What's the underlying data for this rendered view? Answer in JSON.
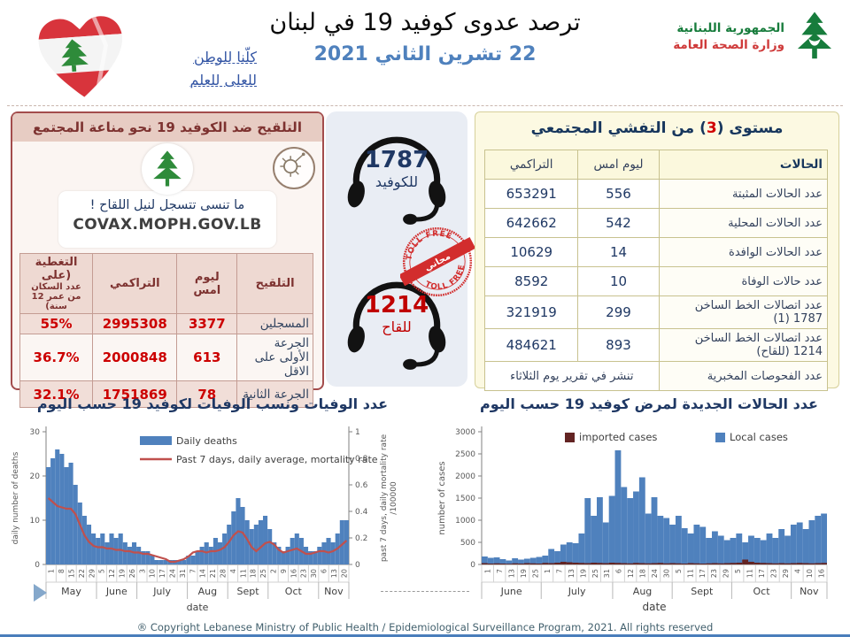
{
  "colors": {
    "bar_blue": "#4f81bd",
    "line_red": "#c0504d",
    "imported_dark_red": "#632423",
    "navy": "#1f3864",
    "value_red": "#c00000",
    "maroon": "#943634",
    "date_blue": "#4f81bd",
    "green": "#177c3c",
    "flag_red": "#d8343c",
    "panel_yellow": "#fcf9e2",
    "panel_pink": "#e7ccc3"
  },
  "icons": {
    "heart_flag": "lebanon-flag-heart-icon",
    "cedar": "cedar-tree-icon",
    "virus": "virus-icon",
    "headset": "headset-icon",
    "stamp": "toll-free-stamp-icon"
  },
  "header": {
    "slogan_line1": "كلّنا للوطن",
    "slogan_line2": "للعلى للعلم",
    "title": "ترصد عدوى كوفيد 19 في لبنان",
    "date": "22 تشرين الثاني 2021",
    "ministry_line1": "الجمهورية اللبنانية",
    "ministry_line2": "وزارة الصحة العامة"
  },
  "vaccination_panel": {
    "title": "التلقيح ضد الكوفيد 19  نحو مناعة المجتمع",
    "bubble_line1": "ما تنسى تتسجل لنيل اللقاح !",
    "bubble_line2": "COVAX.MOPH.GOV.LB",
    "table": {
      "headers": [
        "التلقيح",
        "ليوم امس",
        "التراكمي",
        "التغطية (على"
      ],
      "coverage_header_sub": "عدد السكان من عمر 12 سنة)",
      "rows": [
        {
          "label": "المسجلين",
          "yesterday": "3377",
          "cumulative": "2995308",
          "coverage": "55%"
        },
        {
          "label": "الجرعة الأولى على الاقل",
          "yesterday": "613",
          "cumulative": "2000848",
          "coverage": "36.7%"
        },
        {
          "label": "الجرعة الثانية",
          "yesterday": "78",
          "cumulative": "1751869",
          "coverage": "32.1%"
        }
      ]
    }
  },
  "hotlines": {
    "covid": {
      "number": "1787",
      "label": "للكوفيد"
    },
    "vaccine": {
      "number": "1214",
      "label": "للقاح"
    },
    "stamp": {
      "top": "TOLL FREE",
      "middle": "مجاني",
      "bottom": "TOLL FREE"
    }
  },
  "spread_panel": {
    "title_prefix": "مستوى (",
    "level": "3",
    "title_suffix": ") من التفشي المجتمعي",
    "table": {
      "headers": [
        "الحالات",
        "ليوم امس",
        "التراكمي"
      ],
      "rows": [
        {
          "label": "عدد الحالات المثبتة",
          "yesterday": "556",
          "cumulative": "653291"
        },
        {
          "label": "عدد الحالات المحلية",
          "yesterday": "542",
          "cumulative": "642662"
        },
        {
          "label": "عدد الحالات الوافدة",
          "yesterday": "14",
          "cumulative": "10629"
        },
        {
          "label": "عدد حالات الوفاة",
          "yesterday": "10",
          "cumulative": "8592"
        },
        {
          "label": "عدد اتصالات الخط الساخن 1787  (1)",
          "yesterday": "299",
          "cumulative": "321919"
        },
        {
          "label": "عدد اتصالات الخط الساخن 1214 (للقاح)",
          "yesterday": "893",
          "cumulative": "484621"
        }
      ],
      "last_row": {
        "label": "عدد الفحوصات المخبرية",
        "note": "تنشر في تقرير يوم الثلاثاء"
      }
    }
  },
  "chart_data": [
    {
      "type": "bar",
      "title": "عدد الوفيات ونسب الوفيات لكوفيد 19 حسب اليوم",
      "xlabel": "date",
      "ylabel_left": "daily number of deaths",
      "ylabel_right_line1": "past 7 days, daily mortality rate",
      "ylabel_right_line2": "/100000",
      "ylim_left": [
        0,
        30
      ],
      "yticks_left": [
        0,
        10,
        20,
        30
      ],
      "ylim_right": [
        0,
        1
      ],
      "yticks_right": [
        0,
        0.2,
        0.4,
        0.6,
        0.8,
        1
      ],
      "legend": [
        "Daily deaths",
        "Past 7 days, daily average, mortality rate"
      ],
      "x_tick_labels": [
        "1",
        "8",
        "15",
        "22",
        "29",
        "5",
        "12",
        "19",
        "26",
        "3",
        "10",
        "17",
        "24",
        "31",
        "7",
        "14",
        "21",
        "28",
        "4",
        "11",
        "18",
        "25",
        "2",
        "9",
        "16",
        "23",
        "30",
        "6",
        "13",
        "20"
      ],
      "months": [
        {
          "name": "May",
          "ticks": 5
        },
        {
          "name": "June",
          "ticks": 4
        },
        {
          "name": "July",
          "ticks": 5
        },
        {
          "name": "Aug",
          "ticks": 4
        },
        {
          "name": "Sept",
          "ticks": 4
        },
        {
          "name": "Oct",
          "ticks": 5
        },
        {
          "name": "Nov",
          "ticks": 3
        }
      ],
      "series": [
        {
          "name": "Daily deaths",
          "type": "bar",
          "axis": "left",
          "color": "#4f81bd",
          "values": [
            22,
            24,
            26,
            25,
            22,
            23,
            18,
            14,
            11,
            9,
            7,
            6,
            7,
            5,
            7,
            6,
            7,
            5,
            4,
            5,
            4,
            3,
            3,
            2,
            1,
            1,
            1,
            1,
            1,
            1,
            1,
            2,
            2,
            3,
            4,
            5,
            4,
            6,
            5,
            7,
            9,
            12,
            15,
            13,
            10,
            8,
            9,
            10,
            11,
            8,
            5,
            4,
            3,
            4,
            6,
            7,
            6,
            4,
            3,
            3,
            4,
            5,
            6,
            5,
            7,
            10,
            10
          ]
        },
        {
          "name": "Past 7 days, daily average, mortality rate",
          "type": "line",
          "axis": "right",
          "color": "#c0504d",
          "values": [
            0.5,
            0.47,
            0.44,
            0.43,
            0.42,
            0.42,
            0.38,
            0.3,
            0.22,
            0.17,
            0.14,
            0.13,
            0.13,
            0.12,
            0.12,
            0.11,
            0.11,
            0.1,
            0.1,
            0.09,
            0.09,
            0.08,
            0.08,
            0.07,
            0.06,
            0.05,
            0.04,
            0.02,
            0.02,
            0.03,
            0.04,
            0.06,
            0.09,
            0.1,
            0.1,
            0.09,
            0.1,
            0.1,
            0.11,
            0.13,
            0.17,
            0.22,
            0.25,
            0.24,
            0.19,
            0.13,
            0.1,
            0.13,
            0.16,
            0.17,
            0.15,
            0.11,
            0.09,
            0.1,
            0.11,
            0.12,
            0.1,
            0.08,
            0.08,
            0.09,
            0.1,
            0.1,
            0.09,
            0.1,
            0.12,
            0.15,
            0.18
          ]
        }
      ]
    },
    {
      "type": "bar",
      "title": "عدد الحالات الجديدة لمرض كوفيد 19  حسب اليوم",
      "xlabel": "date",
      "ylabel_left": "number of cases",
      "ylim_left": [
        0,
        3000
      ],
      "yticks_left": [
        0,
        500,
        1000,
        1500,
        2000,
        2500,
        3000
      ],
      "legend": [
        "imported cases",
        "Local cases"
      ],
      "x_tick_labels": [
        "1",
        "7",
        "13",
        "19",
        "25",
        "1",
        "7",
        "13",
        "19",
        "25",
        "31",
        "6",
        "12",
        "18",
        "24",
        "30",
        "5",
        "11",
        "17",
        "23",
        "29",
        "5",
        "11",
        "17",
        "23",
        "29",
        "4",
        "10",
        "16"
      ],
      "months": [
        {
          "name": "June",
          "ticks": 5
        },
        {
          "name": "July",
          "ticks": 6
        },
        {
          "name": "Aug",
          "ticks": 5
        },
        {
          "name": "Sept",
          "ticks": 5
        },
        {
          "name": "Oct",
          "ticks": 5
        },
        {
          "name": "Nov",
          "ticks": 3
        }
      ],
      "series": [
        {
          "name": "Local cases",
          "type": "bar",
          "axis": "left",
          "color": "#4f81bd",
          "values": [
            180,
            150,
            160,
            120,
            90,
            140,
            110,
            130,
            150,
            170,
            200,
            350,
            300,
            450,
            500,
            480,
            700,
            1500,
            1100,
            1520,
            950,
            1550,
            2580,
            1750,
            1500,
            1650,
            1970,
            1150,
            1520,
            1100,
            1050,
            900,
            1100,
            820,
            700,
            900,
            850,
            600,
            750,
            650,
            550,
            600,
            700,
            500,
            650,
            600,
            550,
            700,
            600,
            800,
            650,
            900,
            950,
            800,
            1000,
            1100,
            1150
          ]
        },
        {
          "name": "imported cases",
          "type": "bar",
          "axis": "left",
          "color": "#632423",
          "values": [
            30,
            20,
            25,
            20,
            15,
            25,
            20,
            30,
            25,
            20,
            35,
            30,
            40,
            60,
            50,
            40,
            35,
            30,
            40,
            35,
            30,
            40,
            35,
            30,
            25,
            35,
            30,
            25,
            30,
            35,
            25,
            30,
            25,
            20,
            30,
            25,
            20,
            25,
            30,
            25,
            30,
            35,
            40,
            110,
            60,
            40,
            35,
            30,
            25,
            30,
            25,
            30,
            35,
            30,
            25,
            30,
            35
          ]
        }
      ]
    }
  ],
  "footer": {
    "copyright": "® Copyright Lebanese Ministry of Public Health / Epidemiological Surveillance Program, 2021. All rights reserved"
  }
}
